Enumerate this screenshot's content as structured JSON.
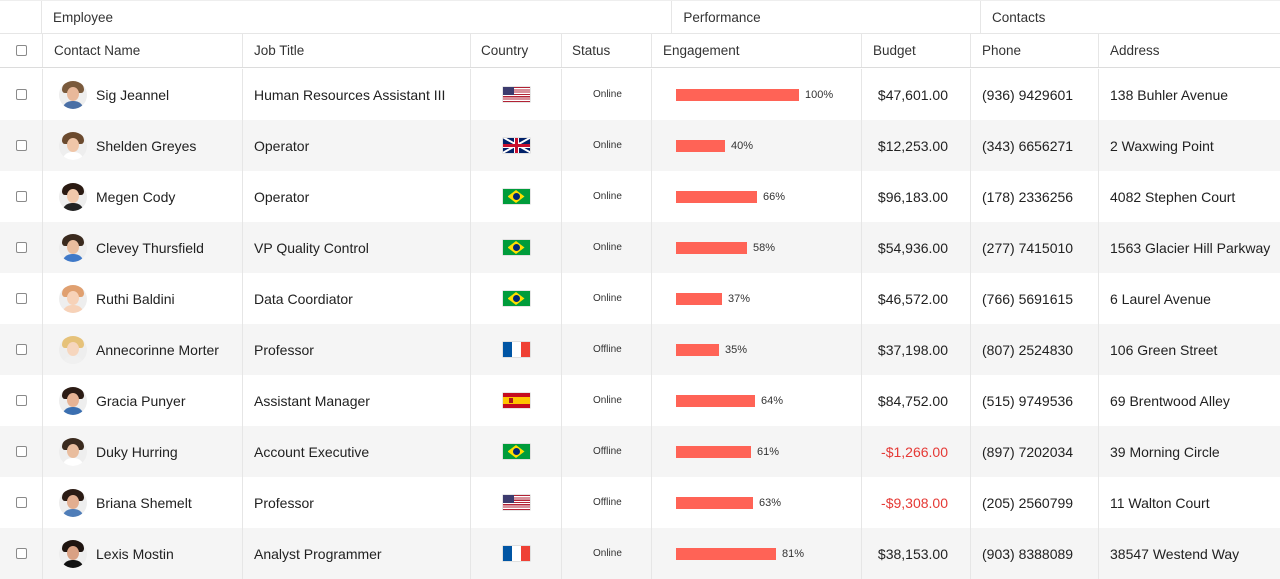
{
  "bands": {
    "employee": "Employee",
    "performance": "Performance",
    "contacts": "Contacts"
  },
  "columns": {
    "contact_name": "Contact Name",
    "job_title": "Job Title",
    "country": "Country",
    "status": "Status",
    "engagement": "Engagement",
    "budget": "Budget",
    "phone": "Phone",
    "address": "Address"
  },
  "colors": {
    "bar": "#ff6356",
    "negative": "#e53935",
    "alt_row": "#f5f5f5"
  },
  "rows": [
    {
      "name": "Sig Jeannel",
      "job": "Human Resources Assistant III",
      "country": "us",
      "status": "Online",
      "engagement": 100,
      "engagement_label": "100%",
      "budget": "$47,601.00",
      "negative": false,
      "phone": "(936) 9429601",
      "address": "138 Buhler Avenue",
      "avatar": {
        "hair": "#7a5a3c",
        "skin": "#e8b89a",
        "shirt": "#4a6fa5"
      }
    },
    {
      "name": "Shelden Greyes",
      "job": "Operator",
      "country": "gb",
      "status": "Online",
      "engagement": 40,
      "engagement_label": "40%",
      "budget": "$12,253.00",
      "negative": false,
      "phone": "(343) 6656271",
      "address": "2 Waxwing Point",
      "avatar": {
        "hair": "#6b4a2e",
        "skin": "#f0c6a8",
        "shirt": "#ffffff"
      }
    },
    {
      "name": "Megen Cody",
      "job": "Operator",
      "country": "br",
      "status": "Online",
      "engagement": 66,
      "engagement_label": "66%",
      "budget": "$96,183.00",
      "negative": false,
      "phone": "(178) 2336256",
      "address": "4082 Stephen Court",
      "avatar": {
        "hair": "#2a1a12",
        "skin": "#f1c8aa",
        "shirt": "#222222"
      }
    },
    {
      "name": "Clevey Thursfield",
      "job": "VP Quality Control",
      "country": "br",
      "status": "Online",
      "engagement": 58,
      "engagement_label": "58%",
      "budget": "$54,936.00",
      "negative": false,
      "phone": "(277) 7415010",
      "address": "1563 Glacier Hill Parkway",
      "avatar": {
        "hair": "#3a2a1e",
        "skin": "#e9bd9e",
        "shirt": "#3f79c8"
      }
    },
    {
      "name": "Ruthi Baldini",
      "job": "Data Coordiator",
      "country": "br",
      "status": "Online",
      "engagement": 37,
      "engagement_label": "37%",
      "budget": "$46,572.00",
      "negative": false,
      "phone": "(766) 5691615",
      "address": "6 Laurel Avenue",
      "avatar": {
        "hair": "#e0a070",
        "skin": "#f7d2b8",
        "shirt": "#f7d2b8"
      }
    },
    {
      "name": "Annecorinne Morter",
      "job": "Professor",
      "country": "fr",
      "status": "Offline",
      "engagement": 35,
      "engagement_label": "35%",
      "budget": "$37,198.00",
      "negative": false,
      "phone": "(807) 2524830",
      "address": "106 Green Street",
      "avatar": {
        "hair": "#e6c27a",
        "skin": "#f6d6be",
        "shirt": "#f0f0f0"
      }
    },
    {
      "name": "Gracia Punyer",
      "job": "Assistant Manager",
      "country": "es",
      "status": "Online",
      "engagement": 64,
      "engagement_label": "64%",
      "budget": "$84,752.00",
      "negative": false,
      "phone": "(515) 9749536",
      "address": "69 Brentwood Alley",
      "avatar": {
        "hair": "#2b1b14",
        "skin": "#e7b394",
        "shirt": "#3b6fb0"
      }
    },
    {
      "name": "Duky Hurring",
      "job": "Account Executive",
      "country": "br",
      "status": "Offline",
      "engagement": 61,
      "engagement_label": "61%",
      "budget": "-$1,266.00",
      "negative": true,
      "phone": "(897) 7202034",
      "address": "39 Morning Circle",
      "avatar": {
        "hair": "#3a2a1e",
        "skin": "#e9bd9e",
        "shirt": "#ffffff"
      }
    },
    {
      "name": "Briana Shemelt",
      "job": "Professor",
      "country": "us",
      "status": "Offline",
      "engagement": 63,
      "engagement_label": "63%",
      "budget": "-$9,308.00",
      "negative": true,
      "phone": "(205) 2560799",
      "address": "11 Walton Court",
      "avatar": {
        "hair": "#2b1b14",
        "skin": "#e3ae90",
        "shirt": "#4f7db8"
      }
    },
    {
      "name": "Lexis Mostin",
      "job": "Analyst Programmer",
      "country": "fr",
      "status": "Online",
      "engagement": 81,
      "engagement_label": "81%",
      "budget": "$38,153.00",
      "negative": false,
      "phone": "(903) 8388089",
      "address": "38547 Westend Way",
      "avatar": {
        "hair": "#1e1410",
        "skin": "#d9a184",
        "shirt": "#111111"
      }
    }
  ]
}
